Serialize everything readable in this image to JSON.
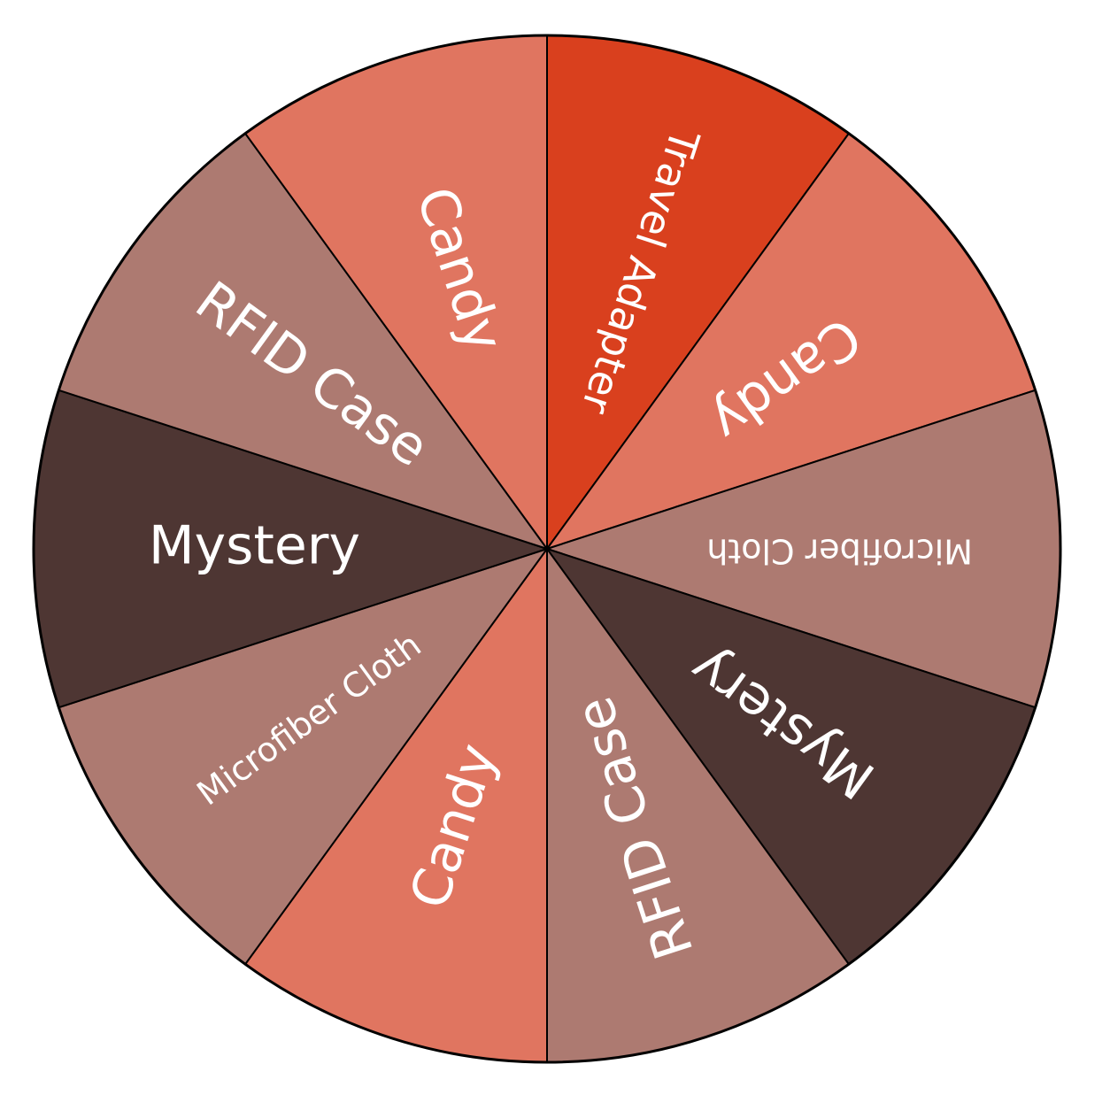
{
  "wheel": {
    "segments": [
      {
        "label": "Travel Adapter",
        "color": "#d9401e"
      },
      {
        "label": "Candy",
        "color": "#e07560"
      },
      {
        "label": "Microfiber Cloth",
        "color": "#ad7a71"
      },
      {
        "label": "Mystery",
        "color": "#4e3633"
      },
      {
        "label": "RFID Case",
        "color": "#ad7a71"
      },
      {
        "label": "Candy",
        "color": "#e07560"
      },
      {
        "label": "Microfiber Cloth",
        "color": "#ad7a71"
      },
      {
        "label": "Mystery",
        "color": "#4e3633"
      },
      {
        "label": "RFID Case",
        "color": "#ad7a71"
      },
      {
        "label": "Candy",
        "color": "#e07560"
      }
    ],
    "border_color": "#000000",
    "text_color": "#ffffff"
  }
}
